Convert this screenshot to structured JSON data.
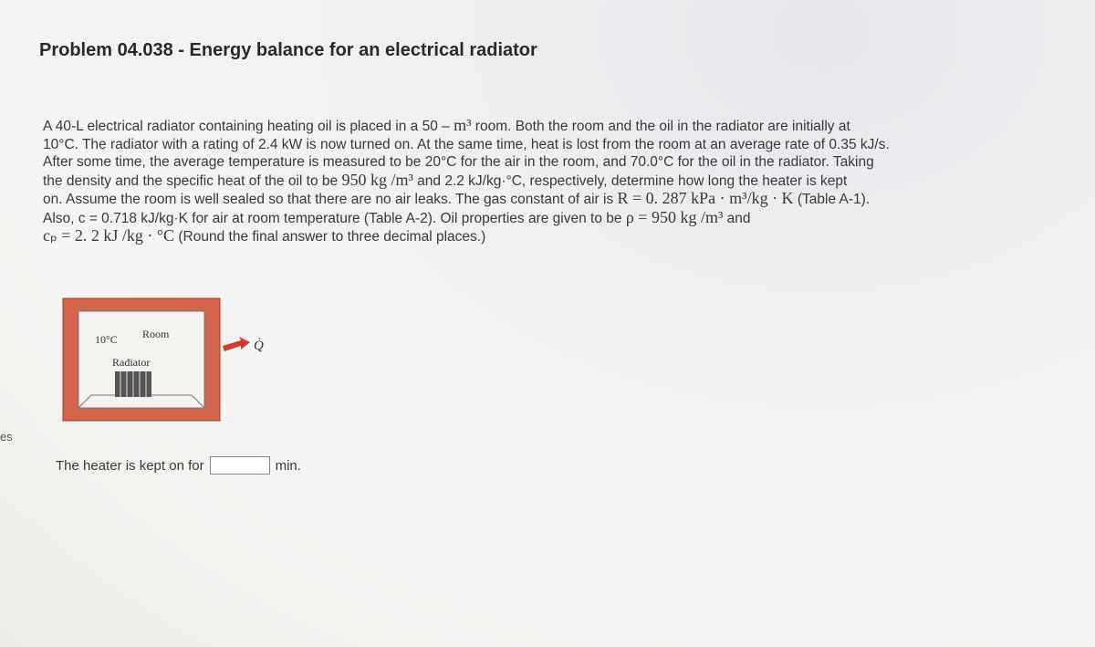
{
  "header": {
    "title": "Problem 04.038 - Energy balance for an electrical radiator"
  },
  "sidebar": {
    "cut_text": "es"
  },
  "problem": {
    "lines": [
      [
        "A 40-L electrical radiator containing heating oil is placed in a 50 – ",
        {
          "math": "m³"
        },
        " room. Both the room and the oil in the radiator are initially at"
      ],
      [
        "10°C. The radiator with a rating of 2.4 kW is now turned on. At the same time, heat is lost from the room at an average rate of 0.35 kJ/s."
      ],
      [
        "After some time, the average temperature is measured to be 20°C for the air in the room, and 70.0°C for the oil in the radiator. Taking"
      ],
      [
        "the density and the specific heat of the oil to be ",
        {
          "math": "950 kg /m³"
        },
        " and 2.2 kJ/kg·°C, respectively, determine how long the heater is kept"
      ],
      [
        "on. Assume the room is well sealed so that there are no air leaks. The gas constant of air is ",
        {
          "math": "R = 0. 287 kPa · m³/kg · K"
        },
        " (Table A-1)."
      ],
      [
        "Also, c = 0.718 kJ/kg·K for air at room temperature (Table A-2). Oil properties are given to be ",
        {
          "math": "ρ = 950 kg /m³"
        },
        " and"
      ],
      [
        {
          "math": "cₚ = 2. 2 kJ /kg · °C"
        },
        " (Round the final answer to three decimal places.)"
      ]
    ]
  },
  "figure": {
    "temp": "10°C",
    "room": "Room",
    "radiator": "Radiator",
    "heat": "Q̇"
  },
  "answer": {
    "prompt": "The heater is kept on for",
    "unit": "min."
  }
}
